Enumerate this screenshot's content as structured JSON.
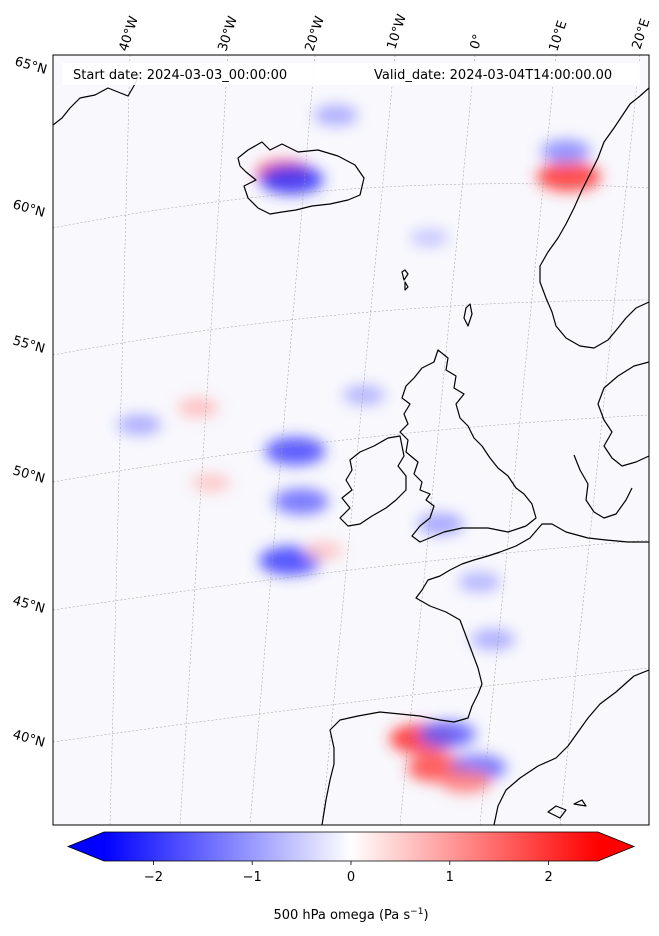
{
  "header": {
    "start_date": "Start date: 2024-03-03_00:00:00",
    "valid_date": "Valid_date: 2024-03-04T14:00:00.00"
  },
  "longitude_labels": [
    "40°W",
    "30°W",
    "20°W",
    "10°W",
    "0°",
    "10°E",
    "20°E"
  ],
  "latitude_labels": [
    "65°N",
    "60°N",
    "55°N",
    "50°N",
    "45°N",
    "40°N"
  ],
  "colorbar": {
    "tick_labels": [
      "−2",
      "−1",
      "0",
      "1",
      "2"
    ],
    "tick_values": [
      -2,
      -1,
      0,
      1,
      2
    ],
    "range": [
      -2.5,
      2.5
    ],
    "extend": "both",
    "colormap": "bwr",
    "title": "500 hPa omega (Pa s",
    "title_superscript": "−1",
    "title_suffix": ")",
    "colors": {
      "min": "#0000ff",
      "mid": "#ffffff",
      "max": "#ff0000"
    }
  },
  "field_blobs": [
    {
      "lon": -24,
      "lat": 61.5,
      "value": 1.6
    },
    {
      "lon": -23,
      "lat": 61.2,
      "value": -2.0
    },
    {
      "lon": -18,
      "lat": 63.6,
      "value": -0.9
    },
    {
      "lon": -33,
      "lat": 52.5,
      "value": 0.7
    },
    {
      "lon": -31,
      "lat": 49.5,
      "value": 0.6
    },
    {
      "lon": -21,
      "lat": 50.5,
      "value": -1.8
    },
    {
      "lon": -20,
      "lat": 48.5,
      "value": -1.5
    },
    {
      "lon": -21,
      "lat": 46.2,
      "value": -1.9
    },
    {
      "lon": -17,
      "lat": 46.5,
      "value": 0.6
    },
    {
      "lon": -13,
      "lat": 52.5,
      "value": -0.8
    },
    {
      "lon": -3,
      "lat": 47.2,
      "value": -1.0
    },
    {
      "lon": 2,
      "lat": 44.8,
      "value": -0.8
    },
    {
      "lon": 4,
      "lat": 42.5,
      "value": -0.9
    },
    {
      "lon": 10.5,
      "lat": 60.5,
      "value": 2.0
    },
    {
      "lon": 10,
      "lat": 61.5,
      "value": -1.2
    },
    {
      "lon": -4,
      "lat": 38.8,
      "value": 2.1
    },
    {
      "lon": -2,
      "lat": 37.6,
      "value": 1.8
    },
    {
      "lon": -1,
      "lat": 38.9,
      "value": -1.6
    },
    {
      "lon": 3,
      "lat": 37.5,
      "value": -1.5
    },
    {
      "lon": 1.5,
      "lat": 37.0,
      "value": 1.3
    },
    {
      "lon": -40,
      "lat": 52.0,
      "value": -0.9
    },
    {
      "lon": -6,
      "lat": 58.5,
      "value": -0.6
    }
  ]
}
